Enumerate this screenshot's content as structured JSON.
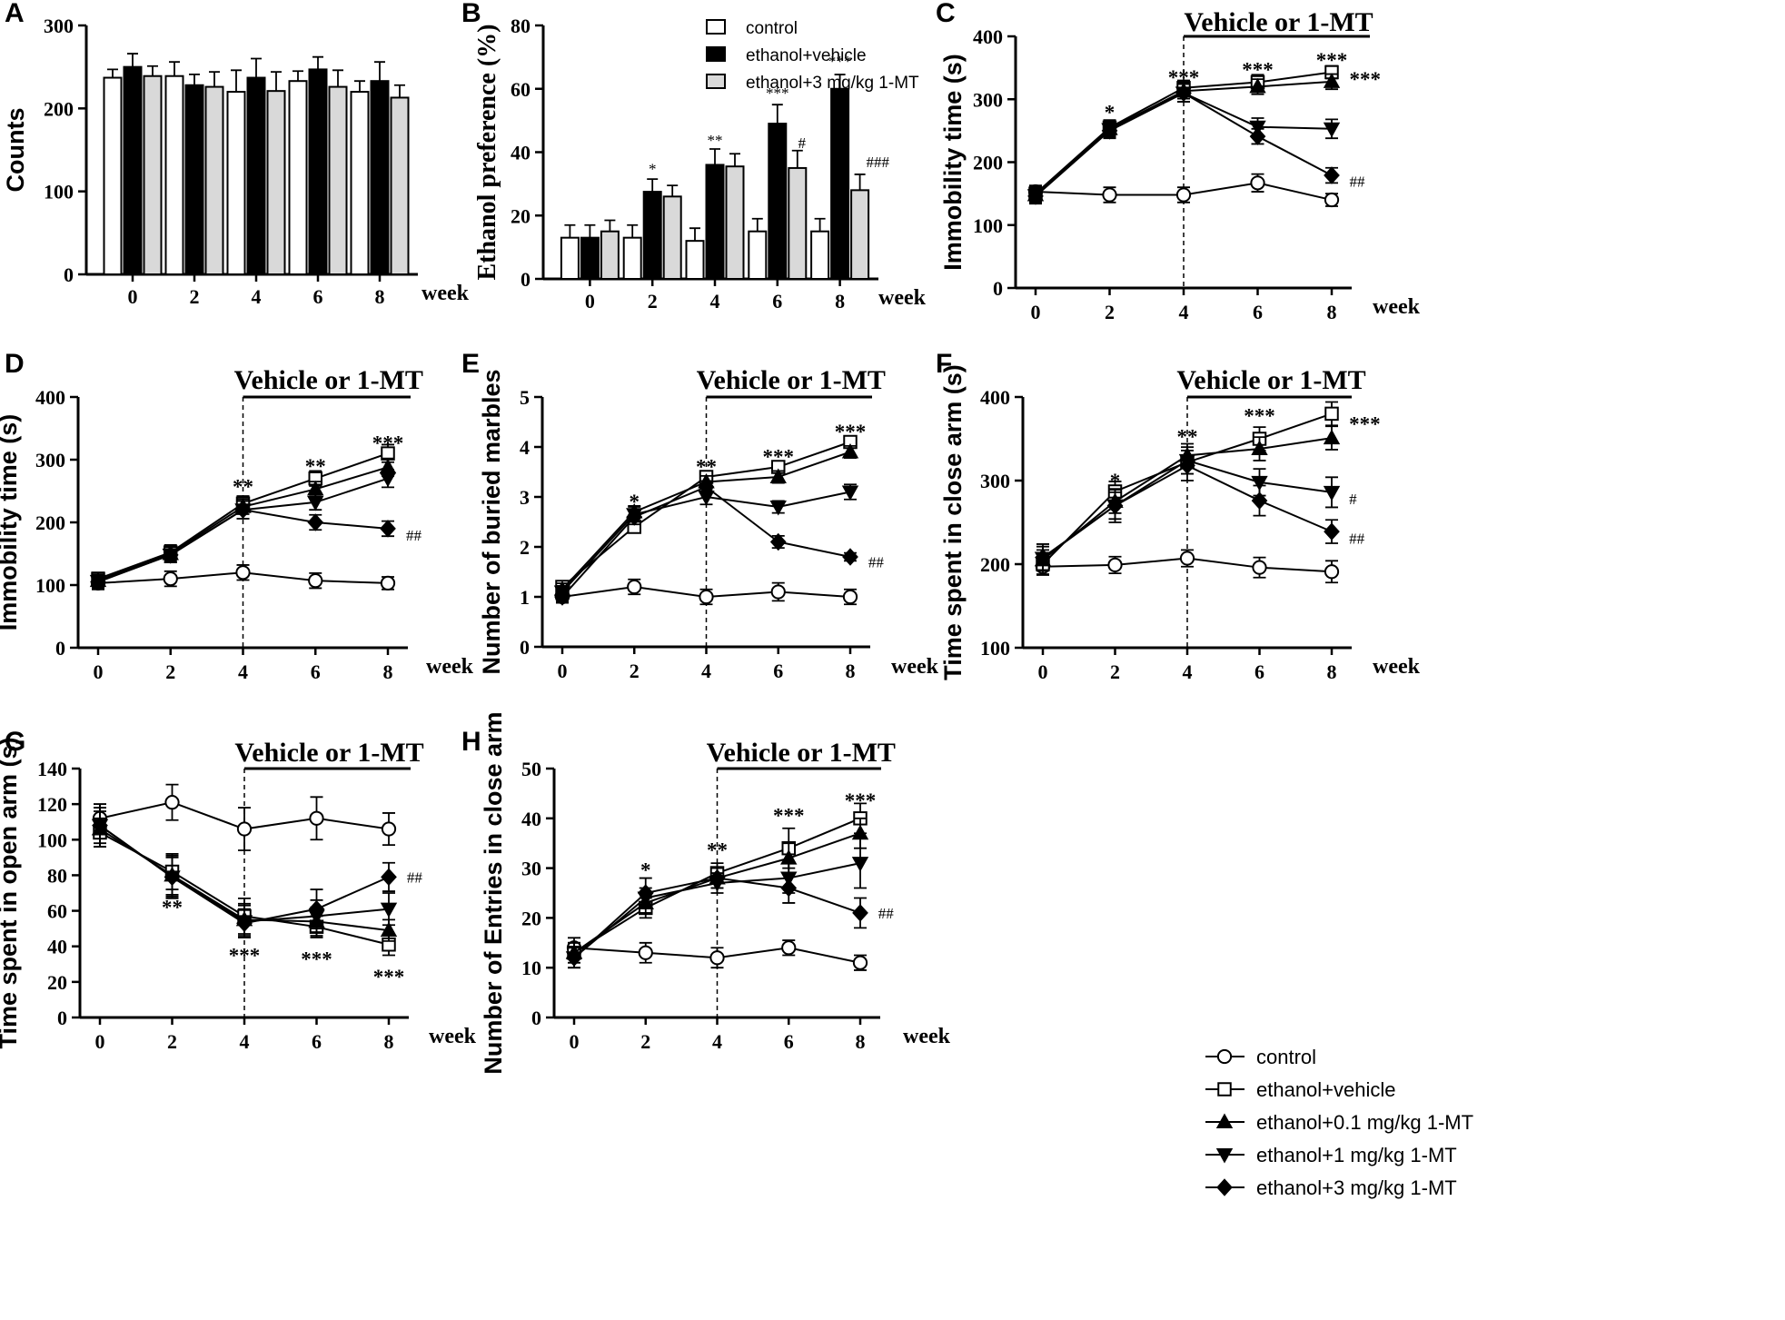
{
  "figure": {
    "x_axis_word": "week",
    "treatment_label": "Vehicle or 1-MT",
    "legend": [
      {
        "label": "control",
        "marker": "open-circle"
      },
      {
        "label": "ethanol+vehicle",
        "marker": "open-square"
      },
      {
        "label": "ethanol+0.1 mg/kg 1-MT",
        "marker": "filled-triangle-up"
      },
      {
        "label": "ethanol+1 mg/kg 1-MT",
        "marker": "filled-triangle-down"
      },
      {
        "label": "ethanol+3 mg/kg 1-MT",
        "marker": "filled-diamond"
      }
    ]
  },
  "chart_data": [
    {
      "panel": "A",
      "type": "bar",
      "ylabel": "Counts",
      "xlabel": "week",
      "categories": [
        "0",
        "2",
        "4",
        "6",
        "8"
      ],
      "ylim": [
        0,
        300
      ],
      "yticks": [
        0,
        100,
        200,
        300
      ],
      "series": [
        {
          "name": "control",
          "values": [
            237,
            239,
            220,
            233,
            220
          ],
          "err": [
            10,
            17,
            26,
            12,
            13
          ],
          "fill": "#ffffff"
        },
        {
          "name": "ethanol+vehicle",
          "values": [
            250,
            228,
            237,
            247,
            233
          ],
          "err": [
            16,
            13,
            23,
            15,
            23
          ],
          "fill": "#000000"
        },
        {
          "name": "ethanol+3 mg/kg 1-MT",
          "values": [
            239,
            226,
            221,
            226,
            213
          ],
          "err": [
            12,
            18,
            23,
            20,
            15
          ],
          "fill": "#d9d9d9"
        }
      ]
    },
    {
      "panel": "B",
      "type": "bar",
      "ylabel": "Ethanol preference (%)",
      "xlabel": "week",
      "categories": [
        "0",
        "2",
        "4",
        "6",
        "8"
      ],
      "ylim": [
        0,
        80
      ],
      "yticks": [
        0,
        20,
        40,
        60,
        80
      ],
      "series": [
        {
          "name": "control",
          "values": [
            13,
            13,
            12,
            15,
            15
          ],
          "err": [
            4,
            4,
            4,
            4,
            4
          ],
          "fill": "#ffffff"
        },
        {
          "name": "ethanol+vehicle",
          "values": [
            13,
            27.5,
            36,
            49,
            60
          ],
          "err": [
            4,
            4,
            5,
            6,
            4.5
          ],
          "fill": "#000000"
        },
        {
          "name": "ethanol+3 mg/kg 1-MT",
          "values": [
            15,
            26,
            35.5,
            35,
            28
          ],
          "err": [
            3.5,
            3.5,
            4,
            5.5,
            5
          ],
          "fill": "#d9d9d9"
        }
      ],
      "annotations": [
        {
          "text": "*",
          "cat": 1,
          "y": 36
        },
        {
          "text": "**",
          "cat": 2,
          "y": 45
        },
        {
          "text": "***",
          "cat": 3,
          "y": 60
        },
        {
          "text": "#",
          "cat": 3.33,
          "y": 43
        },
        {
          "text": "***",
          "cat": 4,
          "y": 70
        },
        {
          "text": "###",
          "cat": 4.42,
          "y": 37
        }
      ]
    },
    {
      "panel": "C",
      "type": "line",
      "ylabel": "Immobility time (s)",
      "xlabel": "week",
      "x": [
        0,
        2,
        4,
        6,
        8
      ],
      "ylim": [
        0,
        400
      ],
      "yticks": [
        0,
        100,
        200,
        300,
        400
      ],
      "series": [
        {
          "name": "control",
          "values": [
            153,
            148,
            148,
            167,
            140
          ],
          "err": [
            10,
            12,
            12,
            14,
            10
          ]
        },
        {
          "name": "ethanol+vehicle",
          "values": [
            150,
            255,
            318,
            327,
            343
          ],
          "err": [
            12,
            12,
            12,
            12,
            10
          ]
        },
        {
          "name": "ethanol+0.1 mg/kg 1-MT",
          "values": [
            148,
            253,
            313,
            320,
            328
          ],
          "err": [
            12,
            12,
            12,
            12,
            12
          ]
        },
        {
          "name": "ethanol+1 mg/kg 1-MT",
          "values": [
            147,
            252,
            310,
            256,
            253
          ],
          "err": [
            12,
            12,
            14,
            14,
            15
          ]
        },
        {
          "name": "ethanol+3 mg/kg 1-MT",
          "values": [
            146,
            250,
            310,
            241,
            179
          ],
          "err": [
            12,
            12,
            14,
            12,
            12
          ]
        }
      ],
      "annotations": [
        {
          "text": "*",
          "x": 2,
          "y": 282
        },
        {
          "text": "***",
          "x": 4,
          "y": 338
        },
        {
          "text": "***",
          "x": 6,
          "y": 350
        },
        {
          "text": "***",
          "x": 8,
          "y": 365
        },
        {
          "text": "***",
          "x": 8.48,
          "y": 335
        },
        {
          "text": "##",
          "x": 8.48,
          "y": 170
        }
      ]
    },
    {
      "panel": "D",
      "type": "line",
      "ylabel": "Immobility time (s)",
      "xlabel": "week",
      "x": [
        0,
        2,
        4,
        6,
        8
      ],
      "ylim": [
        0,
        400
      ],
      "yticks": [
        0,
        100,
        200,
        300,
        400
      ],
      "series": [
        {
          "name": "control",
          "values": [
            103,
            110,
            120,
            107,
            103
          ],
          "err": [
            10,
            12,
            12,
            12,
            10
          ]
        },
        {
          "name": "ethanol+vehicle",
          "values": [
            110,
            152,
            230,
            270,
            310
          ],
          "err": [
            10,
            12,
            12,
            12,
            14
          ]
        },
        {
          "name": "ethanol+0.1 mg/kg 1-MT",
          "values": [
            107,
            150,
            225,
            253,
            288
          ],
          "err": [
            10,
            12,
            12,
            12,
            14
          ]
        },
        {
          "name": "ethanol+1 mg/kg 1-MT",
          "values": [
            106,
            148,
            220,
            232,
            270
          ],
          "err": [
            10,
            12,
            14,
            12,
            14
          ]
        },
        {
          "name": "ethanol+3 mg/kg 1-MT",
          "values": [
            105,
            148,
            220,
            200,
            190
          ],
          "err": [
            10,
            12,
            14,
            12,
            12
          ]
        }
      ],
      "annotations": [
        {
          "text": "**",
          "x": 4,
          "y": 260
        },
        {
          "text": "**",
          "x": 6,
          "y": 293
        },
        {
          "text": "***",
          "x": 8,
          "y": 330
        },
        {
          "text": "##",
          "x": 8.5,
          "y": 180
        }
      ]
    },
    {
      "panel": "E",
      "type": "line",
      "ylabel": "Number of buried marbles",
      "xlabel": "week",
      "x": [
        0,
        2,
        4,
        6,
        8
      ],
      "ylim": [
        0,
        5
      ],
      "yticks": [
        0,
        1,
        2,
        3,
        4,
        5
      ],
      "series": [
        {
          "name": "control",
          "values": [
            1.0,
            1.2,
            1.0,
            1.1,
            1.0
          ],
          "err": [
            0.12,
            0.15,
            0.15,
            0.18,
            0.15
          ]
        },
        {
          "name": "ethanol+vehicle",
          "values": [
            1.2,
            2.4,
            3.4,
            3.6,
            4.1
          ],
          "err": [
            0.12,
            0.12,
            0.1,
            0.12,
            0.1
          ]
        },
        {
          "name": "ethanol+0.1 mg/kg 1-MT",
          "values": [
            1.15,
            2.7,
            3.3,
            3.4,
            3.9
          ],
          "err": [
            0.12,
            0.12,
            0.12,
            0.12,
            0.12
          ]
        },
        {
          "name": "ethanol+1 mg/kg 1-MT",
          "values": [
            1.1,
            2.65,
            3.0,
            2.8,
            3.1
          ],
          "err": [
            0.12,
            0.15,
            0.15,
            0.12,
            0.15
          ]
        },
        {
          "name": "ethanol+3 mg/kg 1-MT",
          "values": [
            1.0,
            2.6,
            3.2,
            2.1,
            1.8
          ],
          "err": [
            0.1,
            0.15,
            0.12,
            0.12,
            0.08
          ]
        }
      ],
      "annotations": [
        {
          "text": "*",
          "x": 2,
          "y": 2.95
        },
        {
          "text": "**",
          "x": 4,
          "y": 3.65
        },
        {
          "text": "***",
          "x": 6,
          "y": 3.85
        },
        {
          "text": "***",
          "x": 8,
          "y": 4.35
        },
        {
          "text": "##",
          "x": 8.5,
          "y": 1.7
        }
      ]
    },
    {
      "panel": "F",
      "type": "line",
      "ylabel": "Time spent in close arm (s)",
      "xlabel": "week",
      "x": [
        0,
        2,
        4,
        6,
        8
      ],
      "ylim": [
        100,
        400
      ],
      "yticks": [
        100,
        200,
        300,
        400
      ],
      "series": [
        {
          "name": "control",
          "values": [
            197,
            199,
            207,
            196,
            191
          ],
          "err": [
            10,
            10,
            10,
            12,
            13
          ]
        },
        {
          "name": "ethanol+vehicle",
          "values": [
            200,
            287,
            322,
            350,
            380
          ],
          "err": [
            12,
            12,
            14,
            14,
            14
          ]
        },
        {
          "name": "ethanol+0.1 mg/kg 1-MT",
          "values": [
            205,
            275,
            330,
            338,
            351
          ],
          "err": [
            12,
            14,
            14,
            14,
            14
          ]
        },
        {
          "name": "ethanol+1 mg/kg 1-MT",
          "values": [
            207,
            270,
            324,
            298,
            286
          ],
          "err": [
            14,
            16,
            16,
            16,
            18
          ]
        },
        {
          "name": "ethanol+3 mg/kg 1-MT",
          "values": [
            208,
            270,
            318,
            276,
            239
          ],
          "err": [
            16,
            20,
            18,
            18,
            14
          ]
        }
      ],
      "annotations": [
        {
          "text": "*",
          "x": 2,
          "y": 302
        },
        {
          "text": "**",
          "x": 4,
          "y": 355
        },
        {
          "text": "***",
          "x": 6,
          "y": 380
        },
        {
          "text": "***",
          "x": 8.48,
          "y": 370
        },
        {
          "text": "#",
          "x": 8.48,
          "y": 278
        },
        {
          "text": "##",
          "x": 8.48,
          "y": 231
        }
      ]
    },
    {
      "panel": "G",
      "type": "line",
      "ylabel": "Time spent in open arm (s)",
      "xlabel": "week",
      "x": [
        0,
        2,
        4,
        6,
        8
      ],
      "ylim": [
        0,
        140
      ],
      "yticks": [
        0,
        20,
        40,
        60,
        80,
        100,
        120,
        140
      ],
      "series": [
        {
          "name": "control",
          "values": [
            112,
            121,
            106,
            112,
            106
          ],
          "err": [
            8,
            10,
            12,
            12,
            9
          ]
        },
        {
          "name": "ethanol+vehicle",
          "values": [
            104,
            82,
            57,
            51,
            41
          ],
          "err": [
            8,
            10,
            10,
            6,
            6
          ]
        },
        {
          "name": "ethanol+0.1 mg/kg 1-MT",
          "values": [
            106,
            80,
            55,
            54,
            49
          ],
          "err": [
            10,
            11,
            9,
            8,
            6
          ]
        },
        {
          "name": "ethanol+1 mg/kg 1-MT",
          "values": [
            108,
            79,
            54,
            57,
            61
          ],
          "err": [
            10,
            11,
            9,
            9,
            9
          ]
        },
        {
          "name": "ethanol+3 mg/kg 1-MT",
          "values": [
            108,
            79,
            53,
            61,
            79
          ],
          "err": [
            12,
            12,
            8,
            11,
            8
          ]
        }
      ],
      "annotations": [
        {
          "text": "**",
          "x": 2,
          "y": 63
        },
        {
          "text": "***",
          "x": 4,
          "y": 36
        },
        {
          "text": "***",
          "x": 6,
          "y": 34
        },
        {
          "text": "***",
          "x": 8,
          "y": 24
        },
        {
          "text": "##",
          "x": 8.5,
          "y": 79
        }
      ]
    },
    {
      "panel": "H",
      "type": "line",
      "ylabel": "Number of Entries in close arm",
      "xlabel": "week",
      "x": [
        0,
        2,
        4,
        6,
        8
      ],
      "ylim": [
        0,
        50
      ],
      "yticks": [
        0,
        10,
        20,
        30,
        40,
        50
      ],
      "series": [
        {
          "name": "control",
          "values": [
            14,
            13,
            12,
            14,
            11
          ],
          "err": [
            2,
            2,
            2,
            1.5,
            1.5
          ]
        },
        {
          "name": "ethanol+vehicle",
          "values": [
            13,
            22,
            29,
            34,
            40
          ],
          "err": [
            2,
            2,
            2,
            4,
            3
          ]
        },
        {
          "name": "ethanol+0.1 mg/kg 1-MT",
          "values": [
            13,
            23,
            28,
            32,
            37
          ],
          "err": [
            2,
            2,
            2,
            3,
            3
          ]
        },
        {
          "name": "ethanol+1 mg/kg 1-MT",
          "values": [
            12,
            24,
            27,
            28,
            31
          ],
          "err": [
            2,
            2,
            2,
            3,
            5
          ]
        },
        {
          "name": "ethanol+3 mg/kg 1-MT",
          "values": [
            12,
            25,
            28,
            26,
            21
          ],
          "err": [
            2,
            3,
            2,
            3,
            3
          ]
        }
      ],
      "annotations": [
        {
          "text": "*",
          "x": 2,
          "y": 30
        },
        {
          "text": "**",
          "x": 4,
          "y": 34
        },
        {
          "text": "***",
          "x": 6,
          "y": 41
        },
        {
          "text": "***",
          "x": 8,
          "y": 44
        },
        {
          "text": "##",
          "x": 8.5,
          "y": 21
        }
      ]
    }
  ]
}
